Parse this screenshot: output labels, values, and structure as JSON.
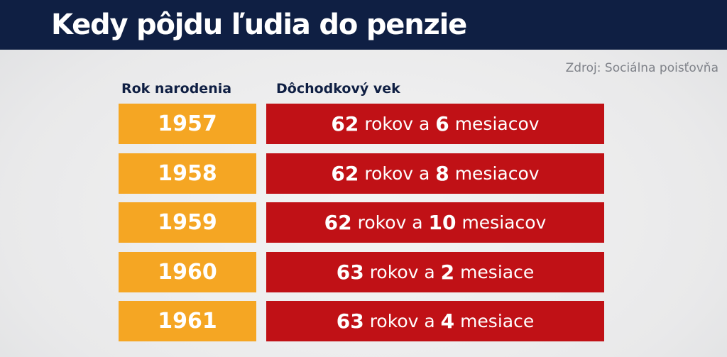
{
  "title": "Kedy pôjdu ľudia do penzie",
  "source": "Zdroj: Sociálna poisťovňa",
  "columns": {
    "year": "Rok narodenia",
    "age": "Dôchodkový vek"
  },
  "rows": [
    {
      "year": "1957",
      "years": "62",
      "years_unit": "rokov a",
      "months": "6",
      "months_unit": "mesiacov"
    },
    {
      "year": "1958",
      "years": "62",
      "years_unit": "rokov a",
      "months": "8",
      "months_unit": "mesiacov"
    },
    {
      "year": "1959",
      "years": "62",
      "years_unit": "rokov a",
      "months": "10",
      "months_unit": "mesiacov"
    },
    {
      "year": "1960",
      "years": "63",
      "years_unit": "rokov a",
      "months": "2",
      "months_unit": "mesiace"
    },
    {
      "year": "1961",
      "years": "63",
      "years_unit": "rokov a",
      "months": "4",
      "months_unit": "mesiace"
    }
  ],
  "colors": {
    "header_bg": "#0f1f43",
    "year_cell": "#f5a623",
    "age_cell": "#c01116",
    "text_light": "#ffffff",
    "source_text": "#7f8289"
  }
}
